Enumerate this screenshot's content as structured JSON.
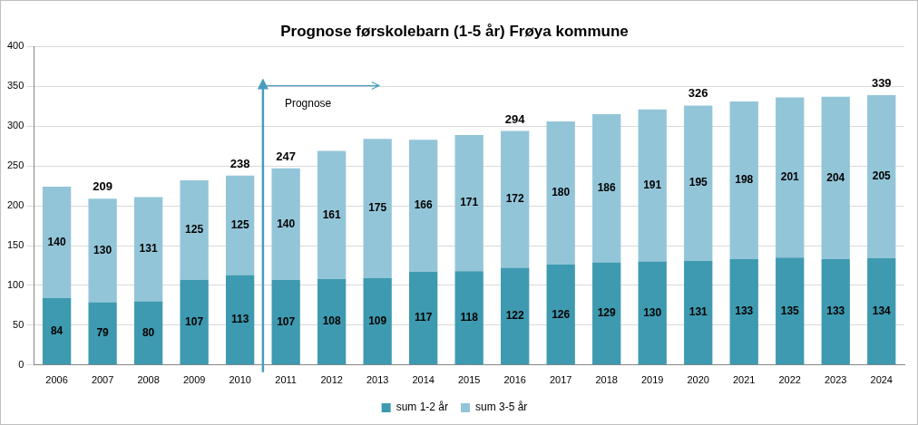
{
  "chart_data": {
    "type": "bar",
    "title": "Prognose førskolebarn (1-5 år) Frøya kommune",
    "categories": [
      "2006",
      "2007",
      "2008",
      "2009",
      "2010",
      "2011",
      "2012",
      "2013",
      "2014",
      "2015",
      "2016",
      "2017",
      "2018",
      "2019",
      "2020",
      "2021",
      "2022",
      "2023",
      "2024"
    ],
    "series": [
      {
        "name": "sum 1-2 år",
        "color": "#3e9ab0",
        "values": [
          84,
          79,
          80,
          107,
          113,
          107,
          108,
          109,
          117,
          118,
          122,
          126,
          129,
          130,
          131,
          133,
          135,
          133,
          134
        ]
      },
      {
        "name": "sum 3-5 år",
        "color": "#93c5d8",
        "values": [
          140,
          130,
          131,
          125,
          125,
          140,
          161,
          175,
          166,
          171,
          172,
          180,
          186,
          191,
          195,
          198,
          201,
          204,
          205
        ]
      }
    ],
    "totals": [
      null,
      209,
      null,
      null,
      238,
      247,
      null,
      null,
      null,
      null,
      294,
      null,
      null,
      null,
      326,
      null,
      null,
      null,
      339
    ],
    "annotations": [
      {
        "text": "Prognose",
        "start": "2011"
      }
    ],
    "ylim": [
      0,
      400
    ],
    "yticks": [
      0,
      50,
      100,
      150,
      200,
      250,
      300,
      350,
      400
    ],
    "stacked": true,
    "data_labels": true,
    "grid": true,
    "legend": "bottom"
  }
}
